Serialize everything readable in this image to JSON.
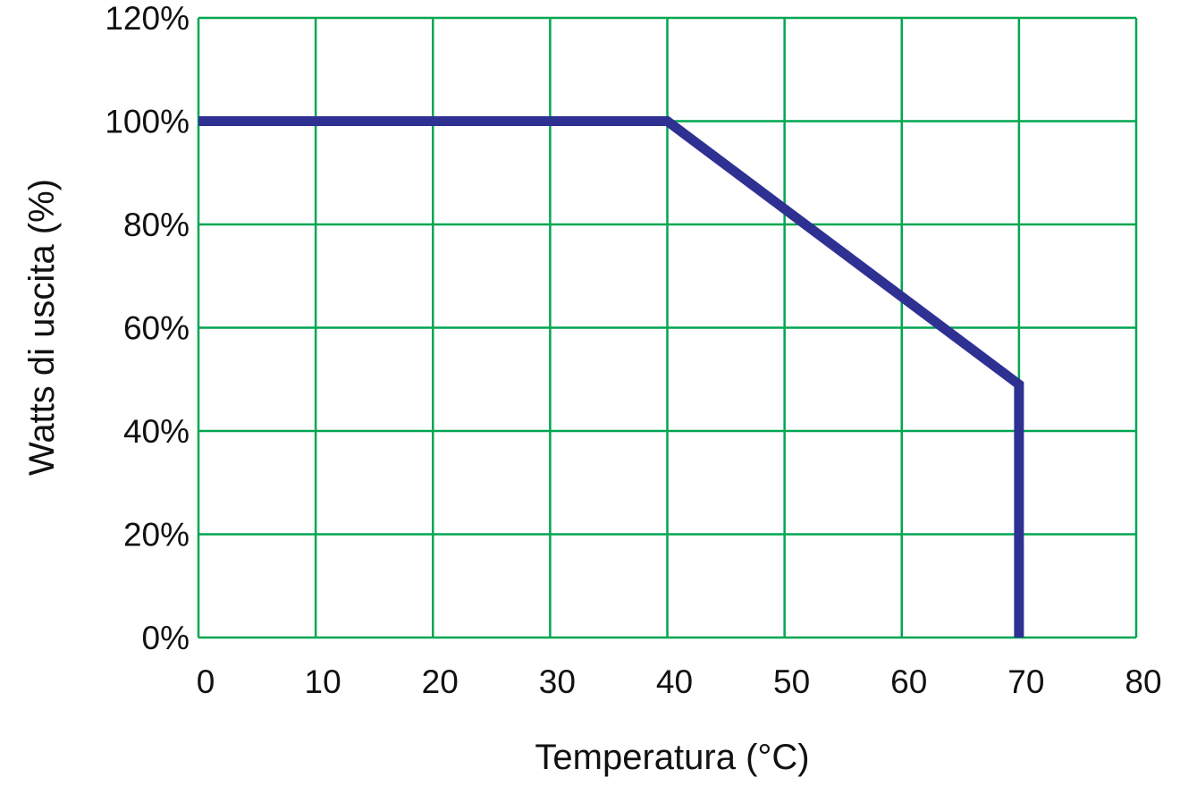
{
  "chart_data": {
    "type": "line",
    "title": "",
    "xlabel": "Temperatura (°C)",
    "ylabel": "Watts di uscita (%)",
    "xlim": [
      0,
      80
    ],
    "ylim": [
      0,
      120
    ],
    "x_ticks": [
      0,
      10,
      20,
      30,
      40,
      50,
      60,
      70,
      80
    ],
    "x_tick_labels": [
      "0",
      "10",
      "20",
      "30",
      "40",
      "50",
      "60",
      "70",
      "80"
    ],
    "y_ticks": [
      0,
      20,
      40,
      60,
      80,
      100,
      120
    ],
    "y_tick_labels": [
      "0%",
      "20%",
      "40%",
      "60%",
      "80%",
      "100%",
      "120%"
    ],
    "grid": true,
    "legend": "none",
    "series": [
      {
        "x": [
          0,
          40,
          70,
          70
        ],
        "y": [
          100,
          100,
          49,
          0
        ]
      }
    ],
    "colors": {
      "line": "#2e3192",
      "grid": "#00a651",
      "text": "#111111"
    }
  }
}
